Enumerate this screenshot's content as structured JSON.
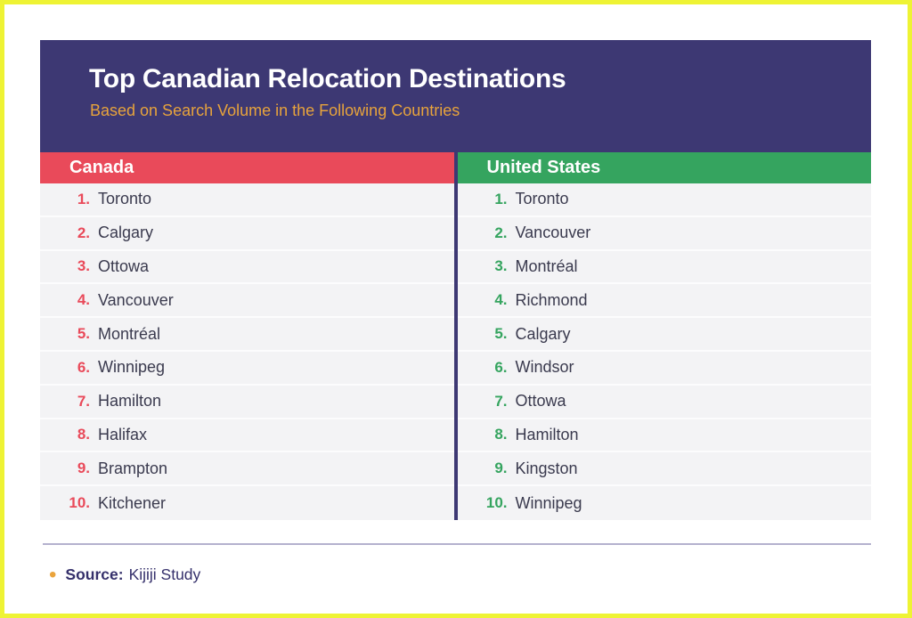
{
  "chart_data": {
    "type": "table",
    "title": "Top Canadian Relocation Destinations",
    "subtitle": "Based on Search Volume in the Following Countries",
    "columns": [
      {
        "label": "Canada",
        "accent_color": "#e94a5a",
        "items": [
          "Toronto",
          "Calgary",
          "Ottowa",
          "Vancouver",
          "Montréal",
          "Winnipeg",
          "Hamilton",
          "Halifax",
          "Brampton",
          "Kitchener"
        ]
      },
      {
        "label": "United States",
        "accent_color": "#35a45f",
        "items": [
          "Toronto",
          "Vancouver",
          "Montréal",
          "Richmond",
          "Calgary",
          "Windsor",
          "Ottowa",
          "Hamilton",
          "Kingston",
          "Winnipeg"
        ]
      }
    ]
  },
  "footer": {
    "bullet_glyph": "•",
    "source_label": "Source:",
    "source_value": "Kijiji Study"
  },
  "colors": {
    "frame_border": "#eef334",
    "header_background": "#3d3873",
    "title_text": "#ffffff",
    "subtitle_text": "#e7a33c",
    "row_background": "#f3f3f5",
    "city_text": "#3a3a4e",
    "column_divider": "#3d3873",
    "footer_rule": "#b4b1ce",
    "source_text": "#35306b",
    "bullet": "#eaa43c"
  }
}
